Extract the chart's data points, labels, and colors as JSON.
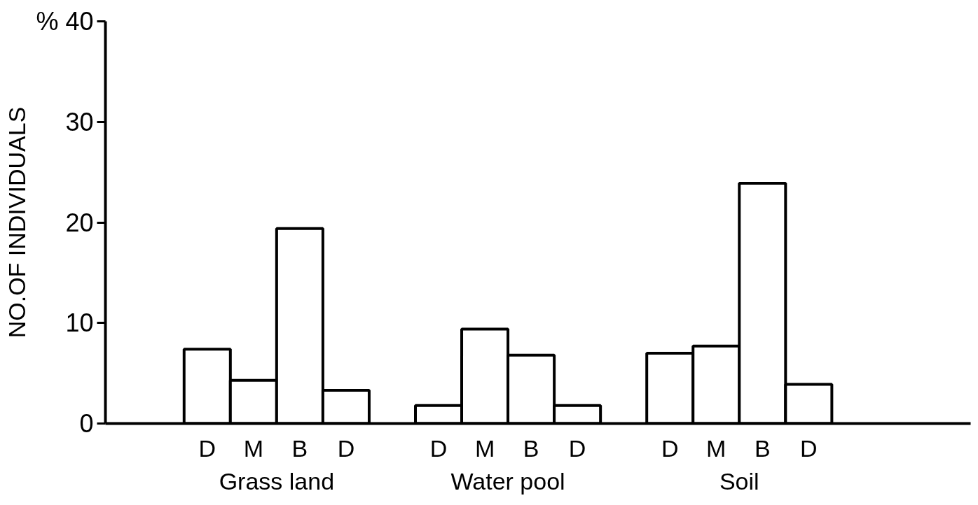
{
  "chart_data": {
    "type": "bar",
    "ylabel": "NO.OF INDIVIDUALS",
    "categories": [
      "D",
      "M",
      "B",
      "D",
      "D",
      "M",
      "B",
      "D",
      "D",
      "M",
      "B",
      "D"
    ],
    "values": [
      7.4,
      4.3,
      19.4,
      3.3,
      1.8,
      9.4,
      6.8,
      1.8,
      7.0,
      7.7,
      23.9,
      3.9
    ],
    "color": "#ffffff",
    "ylim": [
      0,
      40
    ],
    "yticks": [
      0,
      10,
      20,
      30,
      {
        "value": 40,
        "label": "% 40"
      }
    ],
    "annotations": [
      "Grass land",
      "Water pool",
      "Soil"
    ],
    "grid": false
  }
}
